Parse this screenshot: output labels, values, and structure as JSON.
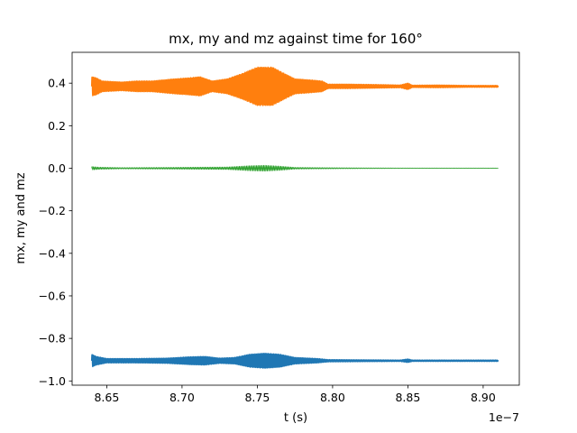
{
  "chart_data": {
    "type": "line",
    "title": "mx, my and mz against time for 160°",
    "xlabel": "t (s)",
    "ylabel": "mx, my and mz",
    "x_offset_text": "1e−7",
    "xlim": [
      8.627,
      8.924
    ],
    "ylim": [
      -1.02,
      0.545
    ],
    "x_ticks": [
      8.65,
      8.7,
      8.75,
      8.8,
      8.85,
      8.9
    ],
    "x_tick_labels": [
      "8.65",
      "8.70",
      "8.75",
      "8.80",
      "8.85",
      "8.90"
    ],
    "y_ticks": [
      0.4,
      0.2,
      0.0,
      -0.2,
      -0.4,
      -0.6,
      -0.8,
      -1.0
    ],
    "y_tick_labels": [
      "0.4",
      "0.2",
      "0.0",
      "−0.2",
      "−0.4",
      "−0.6",
      "−0.8",
      "−1.0"
    ],
    "grid": false,
    "legend": "none",
    "x_range": [
      8.64,
      8.91
    ],
    "series": [
      {
        "color": "#ff7f0e",
        "stroke_width": 1.5,
        "center": 0.385,
        "period": 0.00095,
        "envelope": [
          [
            8.64,
            0.045
          ],
          [
            8.643,
            0.04
          ],
          [
            8.647,
            0.025
          ],
          [
            8.66,
            0.02
          ],
          [
            8.67,
            0.025
          ],
          [
            8.68,
            0.025
          ],
          [
            8.695,
            0.035
          ],
          [
            8.705,
            0.04
          ],
          [
            8.712,
            0.045
          ],
          [
            8.72,
            0.025
          ],
          [
            8.73,
            0.035
          ],
          [
            8.74,
            0.06
          ],
          [
            8.75,
            0.09
          ],
          [
            8.76,
            0.09
          ],
          [
            8.768,
            0.06
          ],
          [
            8.775,
            0.035
          ],
          [
            8.785,
            0.03
          ],
          [
            8.793,
            0.025
          ],
          [
            8.797,
            0.01
          ],
          [
            8.81,
            0.01
          ],
          [
            8.83,
            0.008
          ],
          [
            8.845,
            0.006
          ],
          [
            8.85,
            0.015
          ],
          [
            8.853,
            0.005
          ],
          [
            8.87,
            0.006
          ],
          [
            8.89,
            0.004
          ],
          [
            8.91,
            0.004
          ]
        ]
      },
      {
        "color": "#2ca02c",
        "stroke_width": 0.8,
        "center": 0.0,
        "period": 0.00095,
        "envelope": [
          [
            8.64,
            0.008
          ],
          [
            8.645,
            0.005
          ],
          [
            8.66,
            0.003
          ],
          [
            8.69,
            0.004
          ],
          [
            8.71,
            0.005
          ],
          [
            8.73,
            0.006
          ],
          [
            8.745,
            0.012
          ],
          [
            8.755,
            0.014
          ],
          [
            8.765,
            0.01
          ],
          [
            8.775,
            0.004
          ],
          [
            8.79,
            0.003
          ],
          [
            8.81,
            0.002
          ],
          [
            8.85,
            0.001
          ],
          [
            8.91,
            0.0008
          ]
        ]
      },
      {
        "color": "#1f77b4",
        "stroke_width": 1.5,
        "center": -0.905,
        "period": 0.00095,
        "envelope": [
          [
            8.64,
            0.03
          ],
          [
            8.643,
            0.02
          ],
          [
            8.65,
            0.01
          ],
          [
            8.67,
            0.01
          ],
          [
            8.69,
            0.012
          ],
          [
            8.705,
            0.018
          ],
          [
            8.715,
            0.02
          ],
          [
            8.725,
            0.012
          ],
          [
            8.735,
            0.015
          ],
          [
            8.745,
            0.03
          ],
          [
            8.755,
            0.035
          ],
          [
            8.765,
            0.03
          ],
          [
            8.775,
            0.015
          ],
          [
            8.79,
            0.01
          ],
          [
            8.797,
            0.005
          ],
          [
            8.82,
            0.004
          ],
          [
            8.845,
            0.003
          ],
          [
            8.85,
            0.008
          ],
          [
            8.853,
            0.003
          ],
          [
            8.88,
            0.003
          ],
          [
            8.91,
            0.003
          ]
        ]
      }
    ]
  }
}
